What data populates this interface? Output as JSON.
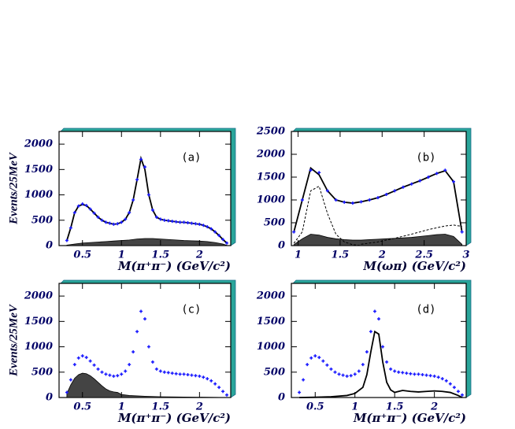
{
  "chart_data": [
    {
      "type": "line",
      "label": "(a)",
      "x_label": "M(π⁺π⁻) (GeV/c²)",
      "y_label": "Events/25MeV",
      "xlim": [
        0.2,
        2.4
      ],
      "ylim": [
        0,
        2250
      ],
      "xticks": [
        0.5,
        1,
        1.5,
        2
      ],
      "yticks": [
        0,
        500,
        1000,
        1500,
        2000
      ],
      "series": [
        {
          "style": "filled",
          "color": "#444444",
          "x": [
            0.3,
            0.4,
            0.5,
            0.6,
            0.7,
            0.8,
            0.9,
            1.0,
            1.1,
            1.2,
            1.3,
            1.4,
            1.5,
            1.6,
            1.7,
            1.8,
            1.9,
            2.0,
            2.1,
            2.2,
            2.3,
            2.35
          ],
          "values": [
            10,
            30,
            50,
            60,
            70,
            80,
            90,
            100,
            110,
            130,
            140,
            140,
            130,
            120,
            110,
            100,
            95,
            90,
            80,
            60,
            30,
            5
          ]
        },
        {
          "style": "line",
          "color": "#000000",
          "x": [
            0.3,
            0.35,
            0.4,
            0.45,
            0.5,
            0.55,
            0.6,
            0.65,
            0.7,
            0.75,
            0.8,
            0.85,
            0.9,
            0.95,
            1.0,
            1.05,
            1.1,
            1.15,
            1.2,
            1.25,
            1.3,
            1.35,
            1.4,
            1.45,
            1.5,
            1.55,
            1.6,
            1.65,
            1.7,
            1.75,
            1.8,
            1.85,
            1.9,
            1.95,
            2.0,
            2.05,
            2.1,
            2.15,
            2.2,
            2.25,
            2.3,
            2.35
          ],
          "values": [
            100,
            350,
            650,
            780,
            810,
            790,
            720,
            640,
            560,
            500,
            460,
            440,
            420,
            430,
            460,
            520,
            650,
            900,
            1300,
            1720,
            1500,
            1000,
            700,
            560,
            520,
            500,
            490,
            480,
            470,
            460,
            460,
            450,
            440,
            430,
            420,
            400,
            370,
            330,
            270,
            200,
            120,
            50
          ]
        },
        {
          "style": "points",
          "color": "#1a1aff",
          "x": [
            0.3,
            0.35,
            0.4,
            0.45,
            0.5,
            0.55,
            0.6,
            0.65,
            0.7,
            0.75,
            0.8,
            0.85,
            0.9,
            0.95,
            1.0,
            1.05,
            1.1,
            1.15,
            1.2,
            1.25,
            1.3,
            1.35,
            1.4,
            1.45,
            1.5,
            1.55,
            1.6,
            1.65,
            1.7,
            1.75,
            1.8,
            1.85,
            1.9,
            1.95,
            2.0,
            2.05,
            2.1,
            2.15,
            2.2,
            2.25,
            2.3,
            2.35
          ],
          "values": [
            100,
            350,
            650,
            780,
            820,
            790,
            720,
            640,
            560,
            500,
            460,
            440,
            420,
            430,
            460,
            520,
            650,
            900,
            1300,
            1700,
            1550,
            1000,
            700,
            560,
            520,
            500,
            490,
            480,
            470,
            460,
            460,
            450,
            440,
            430,
            420,
            400,
            370,
            330,
            270,
            200,
            120,
            50
          ]
        }
      ]
    },
    {
      "type": "line",
      "label": "(b)",
      "x_label": "M(ωπ) (GeV/c²)",
      "xlim": [
        0.92,
        3.0
      ],
      "ylim": [
        0,
        2500
      ],
      "xticks": [
        1,
        1.5,
        2,
        2.5,
        3
      ],
      "yticks": [
        0,
        500,
        1000,
        1500,
        2000,
        2500
      ],
      "series": [
        {
          "style": "filled",
          "color": "#444444",
          "x": [
            0.95,
            1.05,
            1.15,
            1.25,
            1.35,
            1.45,
            1.55,
            1.65,
            1.75,
            1.85,
            1.95,
            2.05,
            2.15,
            2.25,
            2.35,
            2.45,
            2.55,
            2.65,
            2.75,
            2.85,
            2.95
          ],
          "values": [
            20,
            150,
            250,
            230,
            180,
            150,
            130,
            120,
            120,
            130,
            140,
            150,
            160,
            170,
            180,
            200,
            220,
            240,
            250,
            200,
            30
          ]
        },
        {
          "style": "dashed",
          "color": "#000000",
          "x": [
            0.95,
            1.05,
            1.15,
            1.25,
            1.35,
            1.45,
            1.55,
            1.65,
            1.75
          ],
          "values": [
            50,
            300,
            1200,
            1300,
            700,
            250,
            80,
            20,
            0
          ]
        },
        {
          "style": "dashed",
          "color": "#000000",
          "x": [
            1.75,
            1.95,
            2.15,
            2.35,
            2.55,
            2.75,
            2.85,
            2.95
          ],
          "values": [
            30,
            80,
            160,
            250,
            350,
            430,
            450,
            420
          ]
        },
        {
          "style": "line",
          "color": "#000000",
          "x": [
            0.95,
            1.05,
            1.15,
            1.25,
            1.35,
            1.45,
            1.55,
            1.65,
            1.75,
            1.85,
            1.95,
            2.05,
            2.15,
            2.25,
            2.35,
            2.45,
            2.55,
            2.65,
            2.75,
            2.85,
            2.95
          ],
          "values": [
            300,
            1000,
            1700,
            1550,
            1200,
            1000,
            950,
            930,
            960,
            1000,
            1050,
            1120,
            1200,
            1280,
            1350,
            1420,
            1500,
            1580,
            1640,
            1400,
            300
          ]
        },
        {
          "style": "points",
          "color": "#1a1aff",
          "x": [
            0.95,
            1.05,
            1.15,
            1.25,
            1.35,
            1.45,
            1.55,
            1.65,
            1.75,
            1.85,
            1.95,
            2.05,
            2.15,
            2.25,
            2.35,
            2.45,
            2.55,
            2.65,
            2.75,
            2.85,
            2.95
          ],
          "values": [
            300,
            1000,
            1650,
            1600,
            1200,
            1000,
            950,
            930,
            960,
            1000,
            1050,
            1120,
            1200,
            1280,
            1350,
            1420,
            1500,
            1580,
            1650,
            1400,
            300
          ]
        }
      ]
    },
    {
      "type": "line",
      "label": "(c)",
      "x_label": "M(π⁺π⁻) (GeV/c²)",
      "y_label": "Events/25MeV",
      "xlim": [
        0.2,
        2.4
      ],
      "ylim": [
        0,
        2250
      ],
      "xticks": [
        0.5,
        1,
        1.5,
        2
      ],
      "yticks": [
        0,
        500,
        1000,
        1500,
        2000
      ],
      "series": [
        {
          "style": "filled",
          "color": "#444444",
          "x": [
            0.3,
            0.35,
            0.4,
            0.45,
            0.5,
            0.55,
            0.6,
            0.65,
            0.7,
            0.75,
            0.8,
            0.85,
            0.9,
            0.95,
            1.0,
            1.1,
            1.3,
            1.5,
            1.8,
            2.1,
            2.35
          ],
          "values": [
            80,
            250,
            380,
            450,
            480,
            470,
            430,
            370,
            300,
            230,
            170,
            130,
            110,
            100,
            60,
            40,
            25,
            15,
            10,
            5,
            0
          ]
        },
        {
          "style": "points",
          "color": "#1a1aff",
          "x": [
            0.3,
            0.35,
            0.4,
            0.45,
            0.5,
            0.55,
            0.6,
            0.65,
            0.7,
            0.75,
            0.8,
            0.85,
            0.9,
            0.95,
            1.0,
            1.05,
            1.1,
            1.15,
            1.2,
            1.25,
            1.3,
            1.35,
            1.4,
            1.45,
            1.5,
            1.55,
            1.6,
            1.65,
            1.7,
            1.75,
            1.8,
            1.85,
            1.9,
            1.95,
            2.0,
            2.05,
            2.1,
            2.15,
            2.2,
            2.25,
            2.3,
            2.35
          ],
          "values": [
            100,
            350,
            650,
            780,
            820,
            790,
            720,
            640,
            560,
            500,
            460,
            440,
            420,
            430,
            460,
            520,
            650,
            900,
            1300,
            1700,
            1550,
            1000,
            700,
            560,
            520,
            500,
            490,
            480,
            470,
            460,
            460,
            450,
            440,
            430,
            420,
            400,
            370,
            330,
            270,
            200,
            120,
            50
          ]
        }
      ]
    },
    {
      "type": "line",
      "label": "(d)",
      "x_label": "M(π⁺π⁻) (GeV/c²)",
      "xlim": [
        0.2,
        2.4
      ],
      "ylim": [
        0,
        2250
      ],
      "xticks": [
        0.5,
        1,
        1.5,
        2
      ],
      "yticks": [
        0,
        500,
        1000,
        1500,
        2000
      ],
      "series": [
        {
          "style": "line",
          "color": "#000000",
          "x": [
            0.3,
            0.5,
            0.7,
            0.9,
            1.0,
            1.1,
            1.15,
            1.2,
            1.25,
            1.3,
            1.35,
            1.4,
            1.45,
            1.5,
            1.6,
            1.7,
            1.8,
            1.9,
            2.0,
            2.1,
            2.2,
            2.3,
            2.35
          ],
          "values": [
            0,
            5,
            15,
            40,
            80,
            200,
            450,
            900,
            1300,
            1250,
            700,
            300,
            150,
            100,
            140,
            120,
            110,
            120,
            130,
            120,
            100,
            40,
            0
          ]
        },
        {
          "style": "points",
          "color": "#1a1aff",
          "x": [
            0.3,
            0.35,
            0.4,
            0.45,
            0.5,
            0.55,
            0.6,
            0.65,
            0.7,
            0.75,
            0.8,
            0.85,
            0.9,
            0.95,
            1.0,
            1.05,
            1.1,
            1.15,
            1.2,
            1.25,
            1.3,
            1.35,
            1.4,
            1.45,
            1.5,
            1.55,
            1.6,
            1.65,
            1.7,
            1.75,
            1.8,
            1.85,
            1.9,
            1.95,
            2.0,
            2.05,
            2.1,
            2.15,
            2.2,
            2.25,
            2.3,
            2.35
          ],
          "values": [
            100,
            350,
            650,
            780,
            820,
            790,
            720,
            640,
            560,
            500,
            460,
            440,
            420,
            430,
            460,
            520,
            650,
            900,
            1300,
            1700,
            1550,
            1000,
            700,
            560,
            520,
            500,
            490,
            480,
            470,
            460,
            460,
            450,
            440,
            430,
            420,
            400,
            370,
            330,
            270,
            200,
            120,
            50
          ]
        }
      ]
    }
  ]
}
